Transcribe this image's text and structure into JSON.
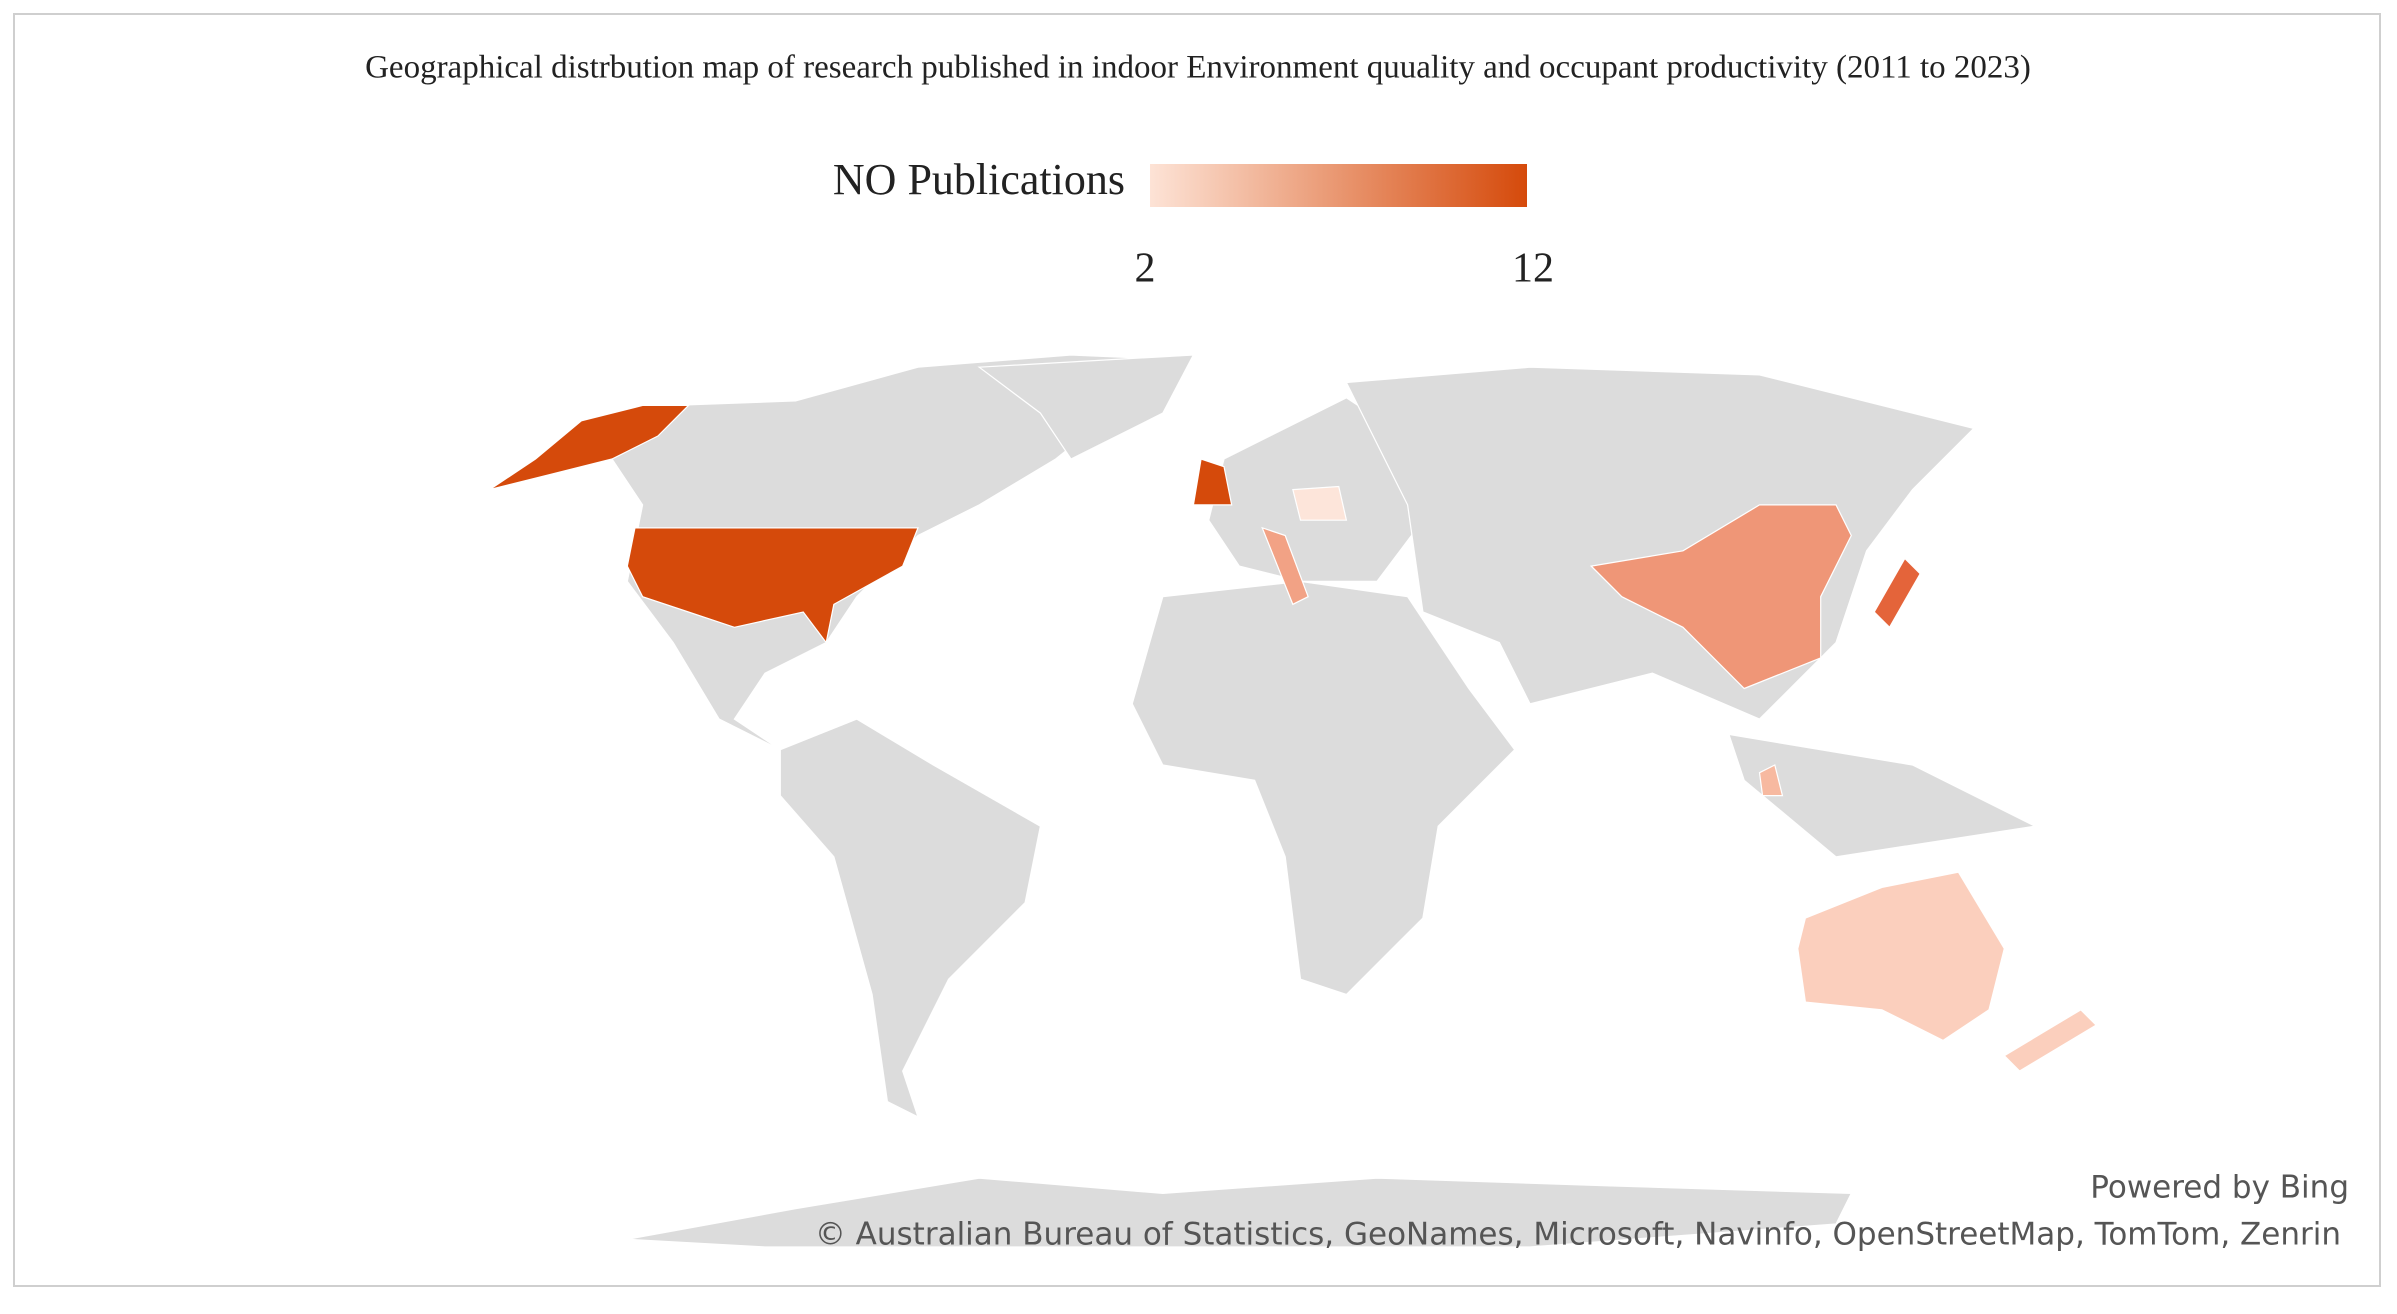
{
  "title": "Geographical distrbution map of research published in indoor Environment quuality and occupant productivity (2011 to 2023)",
  "legend": {
    "title": "NO Publications",
    "min": 2,
    "max": 12,
    "color_min": "#fde3d6",
    "color_max": "#d54a0b"
  },
  "credits": {
    "powered": "Powered by Bing",
    "attribution": "© Australian Bureau of Statistics, GeoNames, Microsoft, Navinfo, OpenStreetMap, TomTom, Zenrin"
  }
}
